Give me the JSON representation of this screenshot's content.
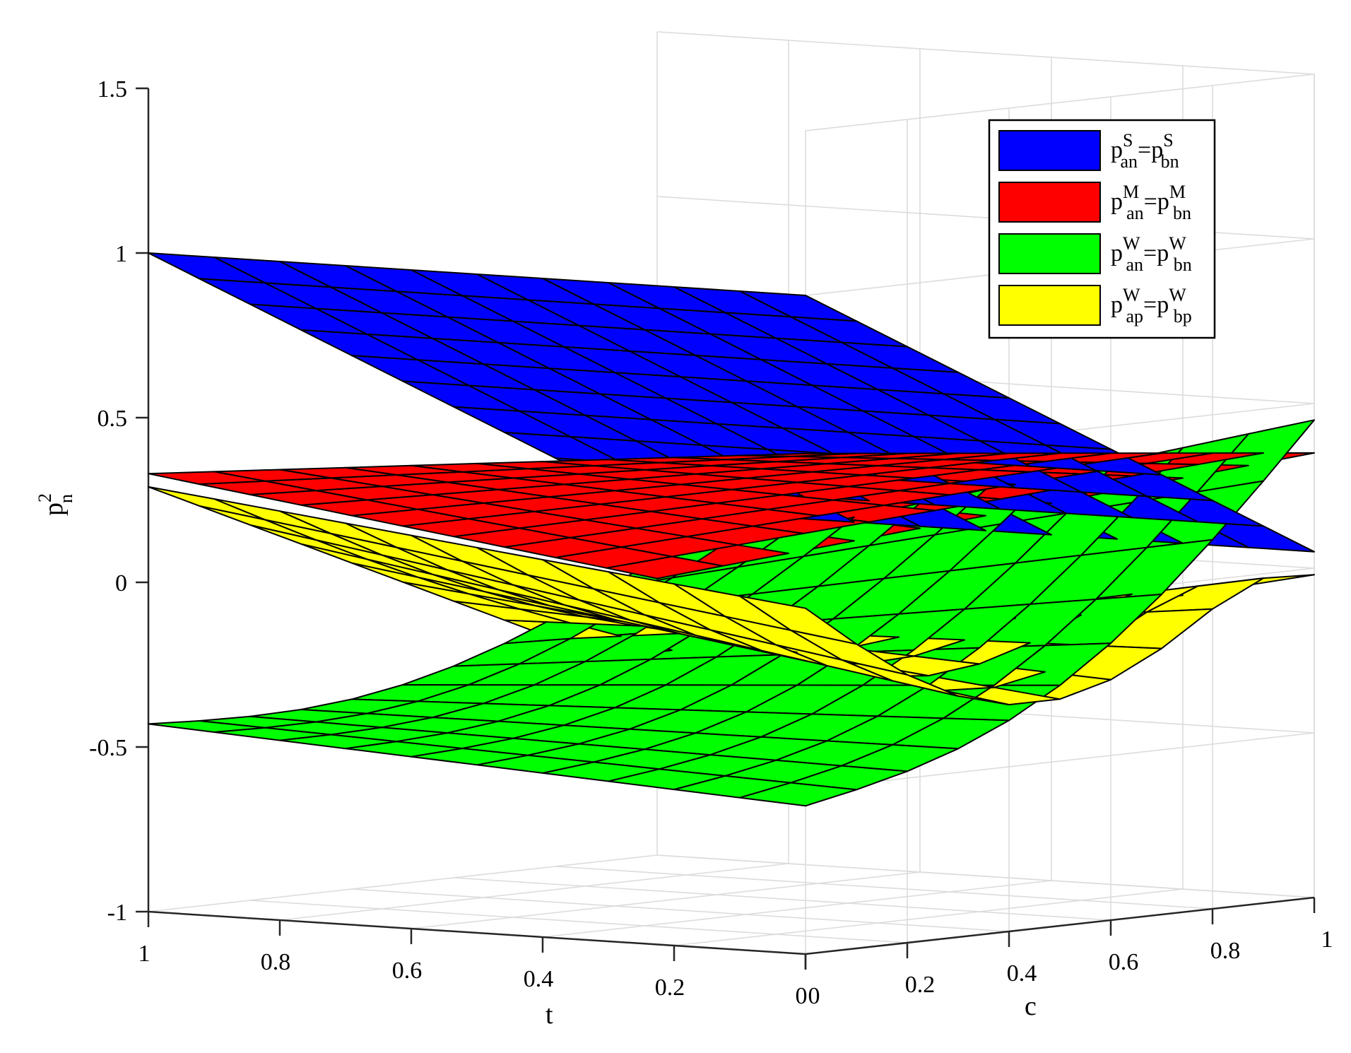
{
  "chart_data": {
    "type": "surface3d",
    "xlabel": "t",
    "ylabel": "c",
    "zlabel": "p",
    "zlabel_sup": "2",
    "zlabel_sub": "n",
    "x_range": [
      0,
      1
    ],
    "y_range": [
      0,
      1
    ],
    "zlim": [
      -1,
      1.5
    ],
    "x_ticks": [
      "1",
      "0.8",
      "0.6",
      "0.4",
      "0.2",
      "0"
    ],
    "y_ticks": [
      "0",
      "0.2",
      "0.4",
      "0.6",
      "0.8",
      "1"
    ],
    "z_ticks": [
      "1.5",
      "1",
      "0.5",
      "0",
      "-0.5",
      "-1"
    ],
    "grid": true,
    "legend_position": "top-right",
    "series": [
      {
        "name_parts": {
          "base1": "p",
          "sup1": "S",
          "sub1": "an",
          "eq": "=",
          "base2": "p",
          "sup2": "S",
          "sub2": "bn"
        },
        "color": "#0000ff",
        "corner_values": {
          "t1_c0": 1.0,
          "t0_c0": 1.0,
          "t1_c1": 0.05,
          "t0_c1": 0.05
        }
      },
      {
        "name_parts": {
          "base1": "p",
          "sup1": "M",
          "sub1": "an",
          "eq": "=",
          "base2": "p",
          "sup2": "M",
          "sub2": "bn"
        },
        "color": "#ff0000",
        "corner_values": {
          "t1_c0": 0.33,
          "t0_c0": 0.52,
          "t1_c1": -0.16,
          "t0_c1": 0.35
        }
      },
      {
        "name_parts": {
          "base1": "p",
          "sup1": "W",
          "sub1": "an",
          "eq": "=",
          "base2": "p",
          "sup2": "W",
          "sub2": "bn"
        },
        "color": "#00ff00",
        "corner_values": {
          "t1_c0": -0.43,
          "t0_c0": -0.55,
          "t1_c1": -0.1,
          "t0_c1": 0.45
        }
      },
      {
        "name_parts": {
          "base1": "p",
          "sup1": "W",
          "sub1": "ap",
          "eq": "=",
          "base2": "p",
          "sup2": "W",
          "sub2": "bp"
        },
        "color": "#ffff00",
        "corner_values": {
          "t1_c0": 0.29,
          "t0_c0": 0.05,
          "t1_c1": -0.46,
          "t0_c1": -0.02
        }
      }
    ]
  }
}
